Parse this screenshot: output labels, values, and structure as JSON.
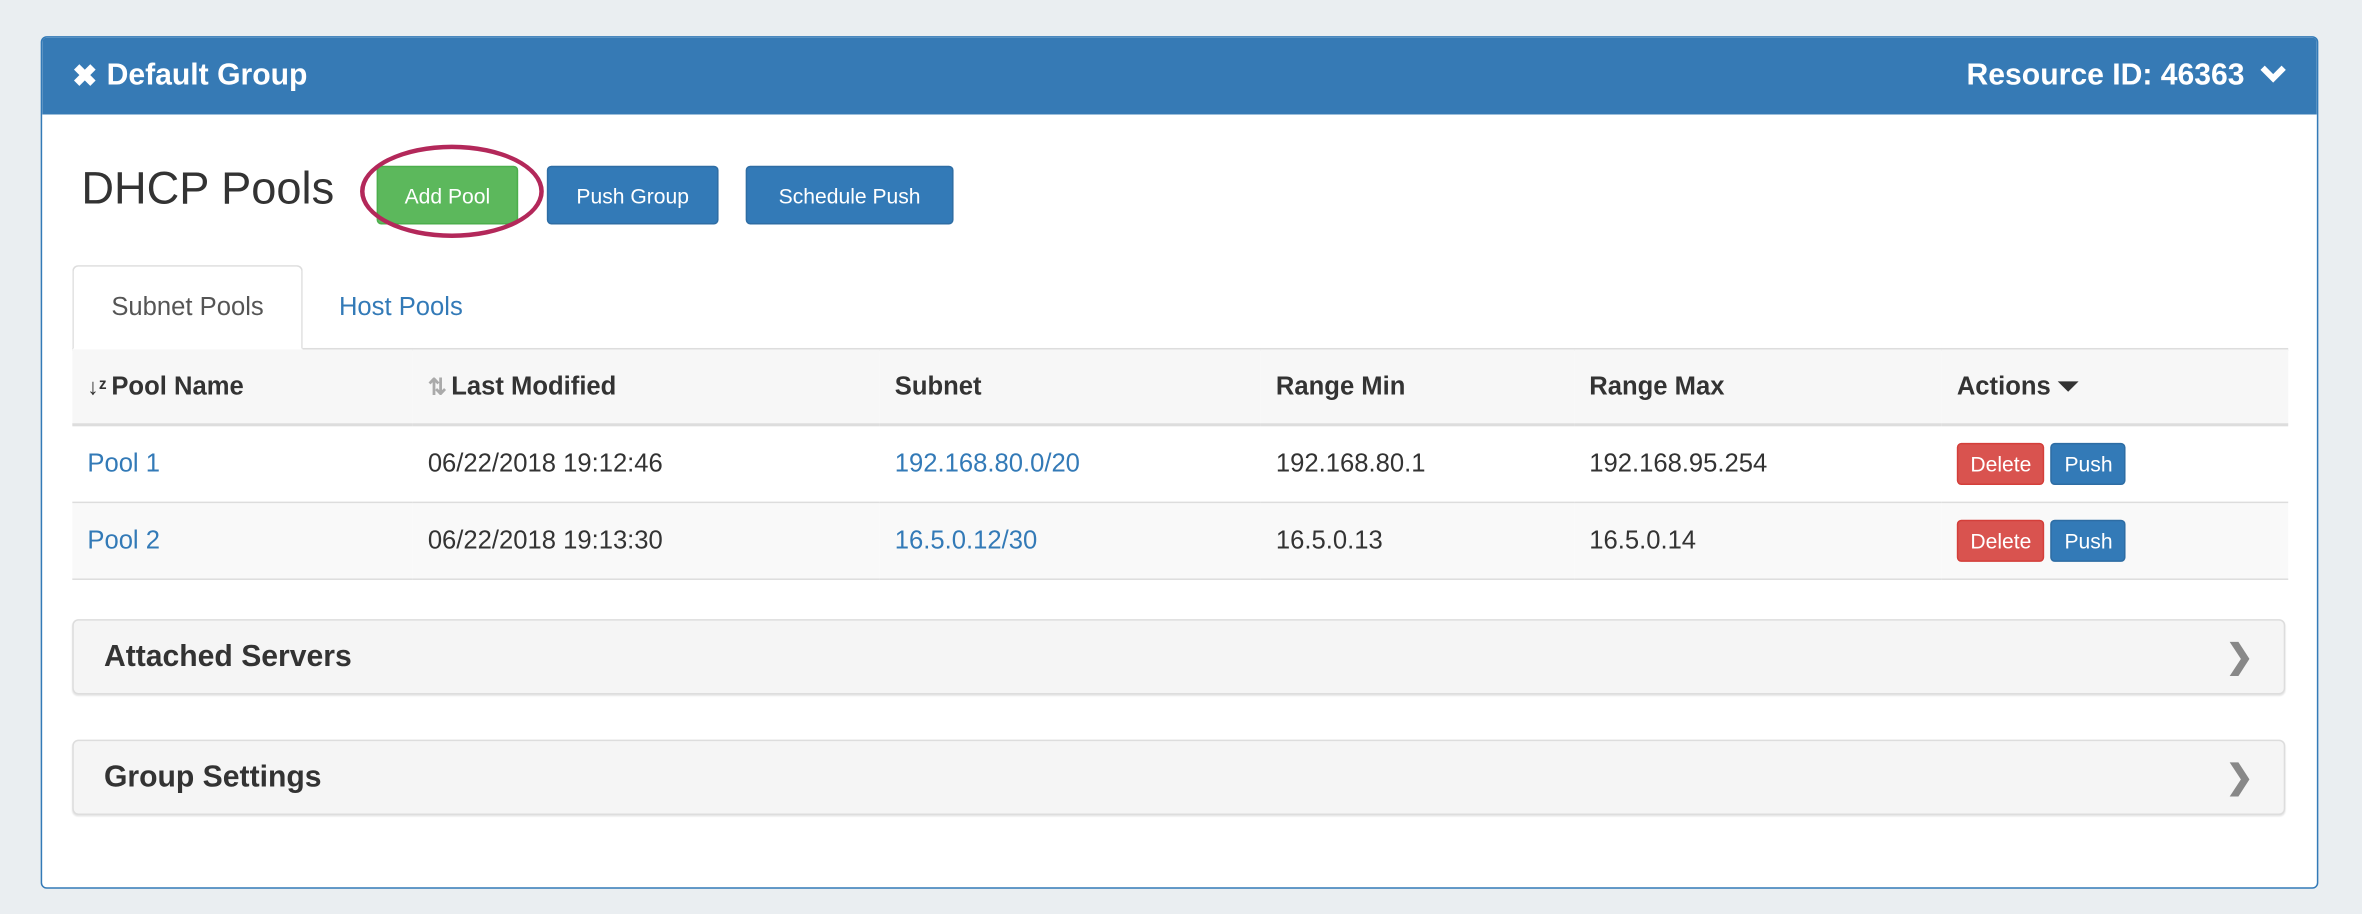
{
  "panel": {
    "title": "Default Group",
    "resource_id": "Resource ID: 46363",
    "close_icon": "close-icon",
    "collapse_icon": "chevron-down-icon",
    "header_color": "#367ab5"
  },
  "page": {
    "title": "DHCP Pools"
  },
  "toolbar": {
    "add_pool": "Add Pool",
    "push_group": "Push Group",
    "schedule_push": "Schedule Push",
    "highlight_color": "#b3285a"
  },
  "tabs": [
    {
      "label": "Subnet Pools",
      "active": true
    },
    {
      "label": "Host Pools",
      "active": false
    }
  ],
  "table": {
    "columns": [
      "Pool Name",
      "Last Modified",
      "Subnet",
      "Range Min",
      "Range Max",
      "Actions"
    ],
    "rows": [
      {
        "name": "Pool 1",
        "modified": "06/22/2018 19:12:46",
        "subnet": "192.168.80.0/20",
        "min": "192.168.80.1",
        "max": "192.168.95.254"
      },
      {
        "name": "Pool 2",
        "modified": "06/22/2018 19:13:30",
        "subnet": "16.5.0.12/30",
        "min": "16.5.0.13",
        "max": "16.5.0.14"
      }
    ],
    "delete_label": "Delete",
    "push_label": "Push"
  },
  "sections": [
    {
      "label": "Attached Servers"
    },
    {
      "label": "Group Settings"
    }
  ]
}
